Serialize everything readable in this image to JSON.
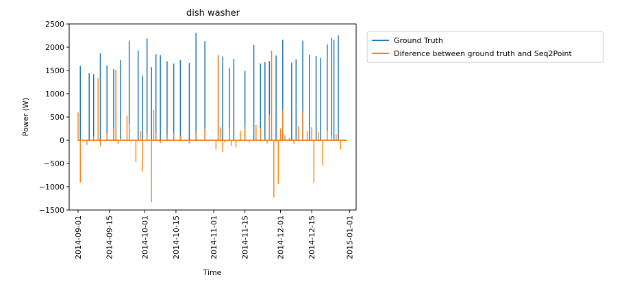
{
  "chart_data": {
    "type": "line",
    "title": "dish washer",
    "xlabel": "Time",
    "ylabel": "Power (W)",
    "xlim": [
      "2014-08-28",
      "2015-01-04"
    ],
    "ylim": [
      -1500,
      2500
    ],
    "yticks": [
      -1500,
      -1000,
      -500,
      0,
      500,
      1000,
      1500,
      2000,
      2500
    ],
    "xticks": [
      "2014-09-01",
      "2014-09-15",
      "2014-10-01",
      "2014-10-15",
      "2014-11-01",
      "2014-11-15",
      "2014-12-01",
      "2014-12-15",
      "2015-01-01"
    ],
    "grid": false,
    "legend_position": "outside-top-right",
    "series": [
      {
        "name": "Ground Truth",
        "color": "#1f77b4",
        "spikes": [
          [
            "2014-09-02",
            1600
          ],
          [
            "2014-09-06",
            1440
          ],
          [
            "2014-09-08",
            1420
          ],
          [
            "2014-09-11",
            1870
          ],
          [
            "2014-09-14",
            1610
          ],
          [
            "2014-09-17",
            1530
          ],
          [
            "2014-09-18",
            1500
          ],
          [
            "2014-09-20",
            1720
          ],
          [
            "2014-09-24",
            2140
          ],
          [
            "2014-09-28",
            1930
          ],
          [
            "2014-09-30",
            1390
          ],
          [
            "2014-10-02",
            2190
          ],
          [
            "2014-10-04",
            1570
          ],
          [
            "2014-10-06",
            1850
          ],
          [
            "2014-10-08",
            1830
          ],
          [
            "2014-10-11",
            1700
          ],
          [
            "2014-10-14",
            1650
          ],
          [
            "2014-10-17",
            1720
          ],
          [
            "2014-10-21",
            1660
          ],
          [
            "2014-10-24",
            2310
          ],
          [
            "2014-10-28",
            2130
          ],
          [
            "2014-11-03",
            1810
          ],
          [
            "2014-11-05",
            1800
          ],
          [
            "2014-11-08",
            1560
          ],
          [
            "2014-11-10",
            1750
          ],
          [
            "2014-11-15",
            1490
          ],
          [
            "2014-11-19",
            2050
          ],
          [
            "2014-11-22",
            1650
          ],
          [
            "2014-11-24",
            1680
          ],
          [
            "2014-11-26",
            1700
          ],
          [
            "2014-11-29",
            1820
          ],
          [
            "2014-12-02",
            2160
          ],
          [
            "2014-12-06",
            1670
          ],
          [
            "2014-12-08",
            1740
          ],
          [
            "2014-12-11",
            2140
          ],
          [
            "2014-12-14",
            1840
          ],
          [
            "2014-12-17",
            1810
          ],
          [
            "2014-12-19",
            1770
          ],
          [
            "2014-12-22",
            2060
          ],
          [
            "2014-12-24",
            2200
          ],
          [
            "2014-12-25",
            2160
          ],
          [
            "2014-12-27",
            2260
          ]
        ]
      },
      {
        "name": "Diference between ground truth and Seq2Point",
        "color": "#ff7f0e",
        "spikes": [
          [
            "2014-09-01",
            600
          ],
          [
            "2014-09-02",
            -910
          ],
          [
            "2014-09-05",
            -100
          ],
          [
            "2014-09-08",
            80
          ],
          [
            "2014-09-10",
            1340
          ],
          [
            "2014-09-11",
            -130
          ],
          [
            "2014-09-14",
            150
          ],
          [
            "2014-09-17",
            270
          ],
          [
            "2014-09-18",
            1480
          ],
          [
            "2014-09-19",
            -80
          ],
          [
            "2014-09-20",
            30
          ],
          [
            "2014-09-23",
            530
          ],
          [
            "2014-09-24",
            350
          ],
          [
            "2014-09-27",
            -470
          ],
          [
            "2014-09-29",
            200
          ],
          [
            "2014-09-30",
            -670
          ],
          [
            "2014-10-02",
            150
          ],
          [
            "2014-10-04",
            -1330
          ],
          [
            "2014-10-05",
            650
          ],
          [
            "2014-10-06",
            150
          ],
          [
            "2014-10-08",
            -60
          ],
          [
            "2014-10-11",
            120
          ],
          [
            "2014-10-14",
            160
          ],
          [
            "2014-10-17",
            100
          ],
          [
            "2014-10-21",
            -70
          ],
          [
            "2014-10-24",
            180
          ],
          [
            "2014-10-28",
            250
          ],
          [
            "2014-11-02",
            -200
          ],
          [
            "2014-11-03",
            1840
          ],
          [
            "2014-11-04",
            280
          ],
          [
            "2014-11-05",
            -250
          ],
          [
            "2014-11-06",
            -50
          ],
          [
            "2014-11-08",
            250
          ],
          [
            "2014-11-09",
            -120
          ],
          [
            "2014-11-11",
            -150
          ],
          [
            "2014-11-13",
            200
          ],
          [
            "2014-11-15",
            290
          ],
          [
            "2014-11-17",
            -50
          ],
          [
            "2014-11-20",
            330
          ],
          [
            "2014-11-22",
            260
          ],
          [
            "2014-11-25",
            -70
          ],
          [
            "2014-11-26",
            550
          ],
          [
            "2014-11-27",
            1930
          ],
          [
            "2014-11-28",
            -1230
          ],
          [
            "2014-11-30",
            -940
          ],
          [
            "2014-12-01",
            250
          ],
          [
            "2014-12-02",
            650
          ],
          [
            "2014-12-03",
            100
          ],
          [
            "2014-12-05",
            50
          ],
          [
            "2014-12-07",
            -80
          ],
          [
            "2014-12-09",
            300
          ],
          [
            "2014-12-11",
            620
          ],
          [
            "2014-12-13",
            200
          ],
          [
            "2014-12-15",
            280
          ],
          [
            "2014-12-16",
            -920
          ],
          [
            "2014-12-18",
            180
          ],
          [
            "2014-12-20",
            -540
          ],
          [
            "2014-12-22",
            200
          ],
          [
            "2014-12-24",
            100
          ],
          [
            "2014-12-26",
            130
          ],
          [
            "2014-12-28",
            -200
          ]
        ]
      }
    ]
  }
}
